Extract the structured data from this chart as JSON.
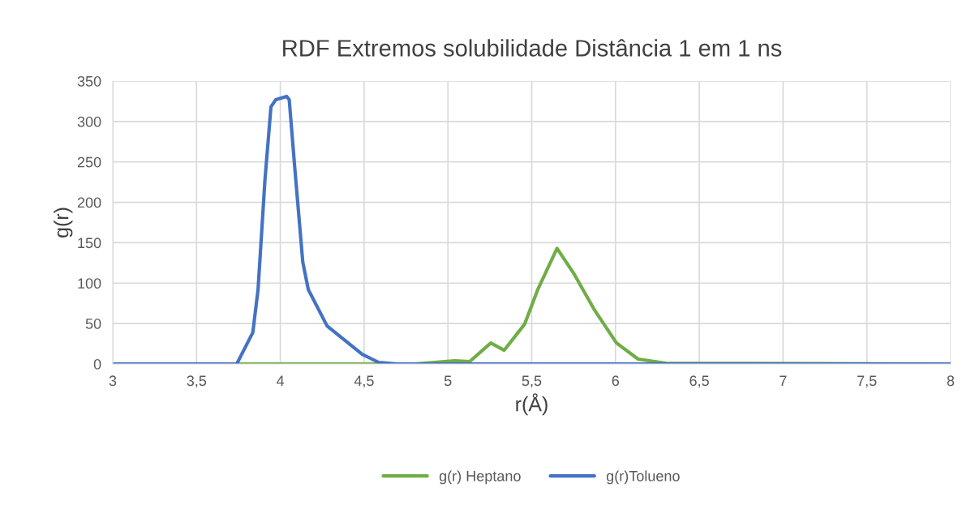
{
  "chart_data": {
    "type": "line",
    "title": "RDF Extremos solubilidade Distância 1 em 1 ns",
    "xlabel": "r(Å)",
    "ylabel": "g(r)",
    "xlim": [
      3,
      8
    ],
    "xticks": [
      {
        "value": 3,
        "label": "3"
      },
      {
        "value": 3.5,
        "label": "3,5"
      },
      {
        "value": 4,
        "label": "4"
      },
      {
        "value": 4.5,
        "label": "4,5"
      },
      {
        "value": 5,
        "label": "5"
      },
      {
        "value": 5.5,
        "label": "5,5"
      },
      {
        "value": 6,
        "label": "6"
      },
      {
        "value": 6.5,
        "label": "6,5"
      },
      {
        "value": 7,
        "label": "7"
      },
      {
        "value": 7.5,
        "label": "7,5"
      },
      {
        "value": 8,
        "label": "8"
      }
    ],
    "ylim": [
      0,
      350
    ],
    "yticks": [
      0,
      50,
      100,
      150,
      200,
      250,
      300,
      350
    ],
    "grid": true,
    "legend": "bottom",
    "marker": "none",
    "line_style": "solid",
    "series": [
      {
        "name": "g(r) Heptano",
        "color": "#70ad47",
        "x": [
          3,
          4.8,
          5.04,
          5.13,
          5.256,
          5.336,
          5.457,
          5.538,
          5.651,
          5.748,
          5.877,
          6.006,
          6.135,
          6.3,
          8
        ],
        "values": [
          0,
          0,
          4,
          3,
          26,
          17,
          49,
          93,
          143,
          113,
          66,
          26,
          6,
          1,
          0
        ]
      },
      {
        "name": "g(r)Tolueno",
        "color": "#4472c4",
        "x": [
          3,
          3.65,
          3.74,
          3.836,
          3.867,
          3.908,
          3.944,
          3.973,
          4.037,
          4.053,
          4.086,
          4.134,
          4.167,
          4.279,
          4.489,
          4.586,
          4.7,
          8
        ],
        "values": [
          0,
          0,
          0,
          39,
          92,
          227,
          318,
          327,
          331,
          327,
          243,
          126,
          92,
          47,
          12,
          2,
          0,
          0
        ]
      }
    ]
  }
}
